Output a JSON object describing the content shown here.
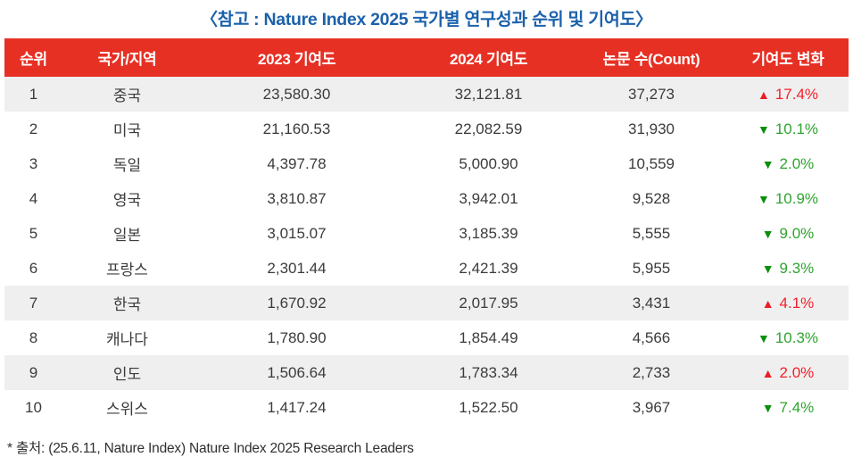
{
  "title": "〈참고 : Nature Index 2025 국가별 연구성과 순위 및 기여도〉",
  "footer": "* 출처: (25.6.11, Nature Index) Nature Index 2025 Research Leaders",
  "colors": {
    "header_bg": "#E73024",
    "title_text": "#1C61AB",
    "row_highlight": "#EFEFEF",
    "change_up_red": "#EE1C25",
    "change_down_green": "#0A8F0A",
    "body_text": "#3B3B3B"
  },
  "icons": {
    "up": "▲",
    "down": "▼"
  },
  "table": {
    "columns": [
      "순위",
      "국가/지역",
      "2023 기여도",
      "2024 기여도",
      "논문 수(Count)",
      "기여도 변화"
    ],
    "rows": [
      {
        "rank": "1",
        "country": "중국",
        "c2023": "23,580.30",
        "c2024": "32,121.81",
        "count": "37,273",
        "change": "17.4%",
        "direction": "up",
        "highlight": true
      },
      {
        "rank": "2",
        "country": "미국",
        "c2023": "21,160.53",
        "c2024": "22,082.59",
        "count": "31,930",
        "change": "10.1%",
        "direction": "down",
        "highlight": false
      },
      {
        "rank": "3",
        "country": "독일",
        "c2023": "4,397.78",
        "c2024": "5,000.90",
        "count": "10,559",
        "change": "2.0%",
        "direction": "down",
        "highlight": false
      },
      {
        "rank": "4",
        "country": "영국",
        "c2023": "3,810.87",
        "c2024": "3,942.01",
        "count": "9,528",
        "change": "10.9%",
        "direction": "down",
        "highlight": false
      },
      {
        "rank": "5",
        "country": "일본",
        "c2023": "3,015.07",
        "c2024": "3,185.39",
        "count": "5,555",
        "change": "9.0%",
        "direction": "down",
        "highlight": false
      },
      {
        "rank": "6",
        "country": "프랑스",
        "c2023": "2,301.44",
        "c2024": "2,421.39",
        "count": "5,955",
        "change": "9.3%",
        "direction": "down",
        "highlight": false
      },
      {
        "rank": "7",
        "country": "한국",
        "c2023": "1,670.92",
        "c2024": "2,017.95",
        "count": "3,431",
        "change": "4.1%",
        "direction": "up",
        "highlight": true
      },
      {
        "rank": "8",
        "country": "캐나다",
        "c2023": "1,780.90",
        "c2024": "1,854.49",
        "count": "4,566",
        "change": "10.3%",
        "direction": "down",
        "highlight": false
      },
      {
        "rank": "9",
        "country": "인도",
        "c2023": "1,506.64",
        "c2024": "1,783.34",
        "count": "2,733",
        "change": "2.0%",
        "direction": "up",
        "highlight": true
      },
      {
        "rank": "10",
        "country": "스위스",
        "c2023": "1,417.24",
        "c2024": "1,522.50",
        "count": "3,967",
        "change": "7.4%",
        "direction": "down",
        "highlight": false
      }
    ]
  }
}
